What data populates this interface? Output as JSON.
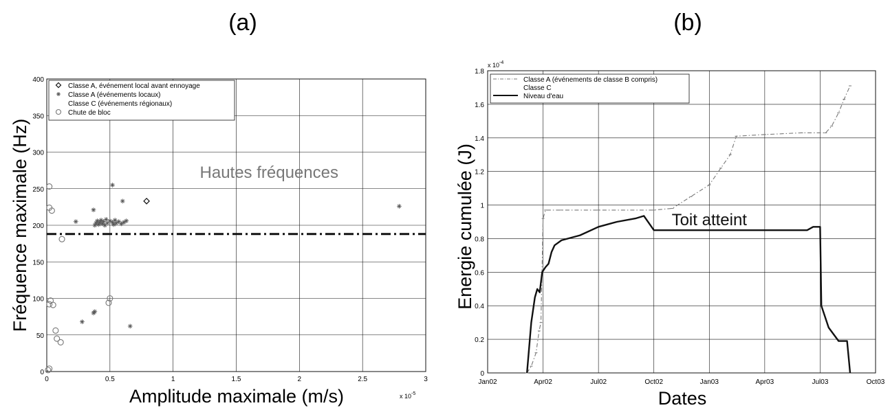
{
  "chart_data": [
    {
      "type": "scatter",
      "panel_label": "(a)",
      "xlabel": "Amplitude maximale (m/s)",
      "ylabel": "Fréquence maximale (Hz)",
      "x_multiplier_label": "x 10",
      "x_multiplier_exponent": "-5",
      "xlim": [
        0,
        3
      ],
      "ylim": [
        0,
        400
      ],
      "xticks": [
        0,
        0.5,
        1,
        1.5,
        2,
        2.5,
        3
      ],
      "xtick_labels": [
        "0",
        "0.5",
        "1",
        "1.5",
        "2",
        "2.5",
        "3"
      ],
      "yticks": [
        0,
        50,
        100,
        150,
        200,
        250,
        300,
        350,
        400
      ],
      "ytick_labels": [
        "0",
        "50",
        "100",
        "150",
        "200",
        "250",
        "300",
        "350",
        "400"
      ],
      "grid": true,
      "legend_position": "top-left",
      "annotations": [
        {
          "text": "Hautes fréquences",
          "x": 1.76,
          "y": 265
        }
      ],
      "threshold_line": {
        "y": 188,
        "style": "dash-dot"
      },
      "series": [
        {
          "name": "Classe A, événement local avant ennoyage",
          "marker": "diamond",
          "color": "#111111",
          "points": [
            [
              0.79,
              233
            ]
          ]
        },
        {
          "name": "Classe A (événements locaux)",
          "marker": "star",
          "color": "#555555",
          "points": [
            [
              0.23,
              205
            ],
            [
              0.37,
              221
            ],
            [
              0.38,
              200
            ],
            [
              0.39,
              203
            ],
            [
              0.4,
              206
            ],
            [
              0.41,
              201
            ],
            [
              0.42,
              204
            ],
            [
              0.43,
              207
            ],
            [
              0.44,
              202
            ],
            [
              0.45,
              205
            ],
            [
              0.46,
              200
            ],
            [
              0.47,
              208
            ],
            [
              0.48,
              203
            ],
            [
              0.5,
              206
            ],
            [
              0.52,
              204
            ],
            [
              0.53,
              201
            ],
            [
              0.54,
              207
            ],
            [
              0.55,
              203
            ],
            [
              0.57,
              205
            ],
            [
              0.59,
              202
            ],
            [
              0.61,
              204
            ],
            [
              0.63,
              206
            ],
            [
              0.52,
              255
            ],
            [
              0.6,
              233
            ],
            [
              0.28,
              68
            ],
            [
              0.37,
              80
            ],
            [
              0.38,
              82
            ],
            [
              0.66,
              62
            ],
            [
              2.79,
              226
            ]
          ]
        },
        {
          "name": "Classe C (événements régionaux)",
          "marker": "none",
          "color": "#111111",
          "points": []
        },
        {
          "name": "Chute de bloc",
          "marker": "circle",
          "color": "#777777",
          "points": [
            [
              0.02,
              253
            ],
            [
              0.02,
              224
            ],
            [
              0.04,
              220
            ],
            [
              0.03,
              97
            ],
            [
              0.02,
              92
            ],
            [
              0.05,
              91
            ],
            [
              0.07,
              56
            ],
            [
              0.08,
              45
            ],
            [
              0.12,
              181
            ],
            [
              0.11,
              40
            ],
            [
              0.02,
              4
            ],
            [
              0.01,
              2
            ],
            [
              0.5,
              100
            ],
            [
              0.49,
              94
            ]
          ]
        }
      ]
    },
    {
      "type": "line",
      "panel_label": "(b)",
      "xlabel": "Dates",
      "ylabel": "Energie cumulée (J)",
      "y_multiplier_label": "x 10",
      "y_multiplier_exponent": "-4",
      "x_unit": "month",
      "xlim": [
        "2002-01",
        "2003-10"
      ],
      "ylim": [
        0,
        1.8
      ],
      "xticks": [
        "2002-01",
        "2002-04",
        "2002-07",
        "2002-10",
        "2003-01",
        "2003-04",
        "2003-07",
        "2003-10"
      ],
      "xtick_labels": [
        "Jan02",
        "Apr02",
        "Jul02",
        "Oct02",
        "Jan03",
        "Apr03",
        "Jul03",
        "Oct03"
      ],
      "yticks": [
        0,
        0.2,
        0.4,
        0.6,
        0.8,
        1,
        1.2,
        1.4,
        1.6,
        1.8
      ],
      "ytick_labels": [
        "0",
        "0.2",
        "0.4",
        "0.6",
        "0.8",
        "1",
        "1.2",
        "1.4",
        "1.6",
        "1.8"
      ],
      "grid": true,
      "legend_position": "top-left",
      "annotations": [
        {
          "text": "Toit atteint",
          "x": "2003-01",
          "y": 0.88
        }
      ],
      "series": [
        {
          "name": "Classe A (événements de classe B compris)",
          "style": "dash-dot",
          "color": "#777777",
          "points": [
            [
              "2002-03-05",
              0
            ],
            [
              "2002-03-12",
              0.04
            ],
            [
              "2002-03-20",
              0.12
            ],
            [
              "2002-03-25",
              0.25
            ],
            [
              "2002-03-28",
              0.3
            ],
            [
              "2002-04-01",
              0.92
            ],
            [
              "2002-04-05",
              0.97
            ],
            [
              "2002-05-01",
              0.97
            ],
            [
              "2002-07-01",
              0.97
            ],
            [
              "2002-10-01",
              0.97
            ],
            [
              "2002-11-01",
              0.98
            ],
            [
              "2002-12-01",
              1.05
            ],
            [
              "2003-01-01",
              1.12
            ],
            [
              "2003-01-20",
              1.22
            ],
            [
              "2003-02-05",
              1.3
            ],
            [
              "2003-02-15",
              1.41
            ],
            [
              "2003-04-01",
              1.42
            ],
            [
              "2003-06-01",
              1.43
            ],
            [
              "2003-07-10",
              1.43
            ],
            [
              "2003-07-20",
              1.47
            ],
            [
              "2003-08-01",
              1.55
            ],
            [
              "2003-08-10",
              1.63
            ],
            [
              "2003-08-20",
              1.71
            ]
          ]
        },
        {
          "name": "Classe C",
          "style": "none",
          "color": "#111111",
          "points": []
        },
        {
          "name": "Niveau d'eau",
          "style": "solid",
          "color": "#111111",
          "points": [
            [
              "2002-03-05",
              0
            ],
            [
              "2002-03-12",
              0.3
            ],
            [
              "2002-03-18",
              0.45
            ],
            [
              "2002-03-22",
              0.5
            ],
            [
              "2002-03-26",
              0.48
            ],
            [
              "2002-03-30",
              0.6
            ],
            [
              "2002-04-05",
              0.63
            ],
            [
              "2002-04-10",
              0.65
            ],
            [
              "2002-04-15",
              0.72
            ],
            [
              "2002-04-20",
              0.76
            ],
            [
              "2002-05-01",
              0.79
            ],
            [
              "2002-06-01",
              0.82
            ],
            [
              "2002-07-01",
              0.87
            ],
            [
              "2002-08-01",
              0.9
            ],
            [
              "2002-09-01",
              0.92
            ],
            [
              "2002-09-15",
              0.935
            ],
            [
              "2002-10-01",
              0.85
            ],
            [
              "2002-11-01",
              0.85
            ],
            [
              "2003-01-01",
              0.85
            ],
            [
              "2003-03-01",
              0.85
            ],
            [
              "2003-05-01",
              0.85
            ],
            [
              "2003-06-10",
              0.85
            ],
            [
              "2003-06-20",
              0.87
            ],
            [
              "2003-07-01",
              0.87
            ],
            [
              "2003-07-03",
              0.4
            ],
            [
              "2003-07-15",
              0.27
            ],
            [
              "2003-08-01",
              0.19
            ],
            [
              "2003-08-15",
              0.19
            ],
            [
              "2003-08-20",
              0
            ]
          ]
        }
      ]
    }
  ]
}
